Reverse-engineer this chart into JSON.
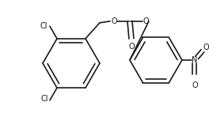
{
  "bg_color": "#ffffff",
  "line_color": "#1a1a1a",
  "line_width": 1.2,
  "font_size": 7.0,
  "figsize": [
    2.64,
    1.48
  ],
  "dpi": 100,
  "xlim": [
    0,
    264
  ],
  "ylim": [
    0,
    148
  ]
}
